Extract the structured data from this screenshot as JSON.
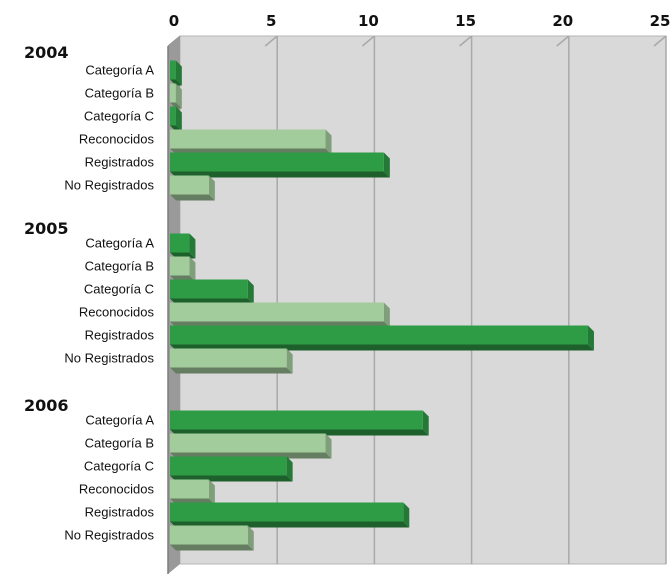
{
  "chart_data": {
    "type": "bar",
    "orientation": "horizontal",
    "style": "3d",
    "xlim": [
      0,
      25
    ],
    "x_ticks": [
      "0",
      "5",
      "10",
      "15",
      "20",
      "25"
    ],
    "grid": true,
    "colors": {
      "dark": "#2e9b45",
      "light": "#a3cc9c",
      "wall": "#d9d9d9",
      "floor": "#9a9a9a"
    },
    "groups": [
      {
        "label": "2004",
        "bars": [
          {
            "category": "Categoría A",
            "value": 0.3,
            "shade": "dark"
          },
          {
            "category": "Categoría B",
            "value": 0.3,
            "shade": "light"
          },
          {
            "category": "Categoría C",
            "value": 0.3,
            "shade": "dark"
          },
          {
            "category": "Reconocidos",
            "value": 8,
            "shade": "light"
          },
          {
            "category": "Registrados",
            "value": 11,
            "shade": "dark"
          },
          {
            "category": "No Registrados",
            "value": 2,
            "shade": "light"
          }
        ]
      },
      {
        "label": "2005",
        "bars": [
          {
            "category": "Categoría A",
            "value": 1,
            "shade": "dark"
          },
          {
            "category": "Categoría B",
            "value": 1,
            "shade": "light"
          },
          {
            "category": "Categoría C",
            "value": 4,
            "shade": "dark"
          },
          {
            "category": "Reconocidos",
            "value": 11,
            "shade": "light"
          },
          {
            "category": "Registrados",
            "value": 21.5,
            "shade": "dark"
          },
          {
            "category": "No Registrados",
            "value": 6,
            "shade": "light"
          }
        ]
      },
      {
        "label": "2006",
        "bars": [
          {
            "category": "Categoría A",
            "value": 13,
            "shade": "dark"
          },
          {
            "category": "Categoría B",
            "value": 8,
            "shade": "light"
          },
          {
            "category": "Categoría C",
            "value": 6,
            "shade": "dark"
          },
          {
            "category": "Reconocidos",
            "value": 2,
            "shade": "light"
          },
          {
            "category": "Registrados",
            "value": 12,
            "shade": "dark"
          },
          {
            "category": "No Registrados",
            "value": 4,
            "shade": "light"
          }
        ]
      }
    ]
  }
}
